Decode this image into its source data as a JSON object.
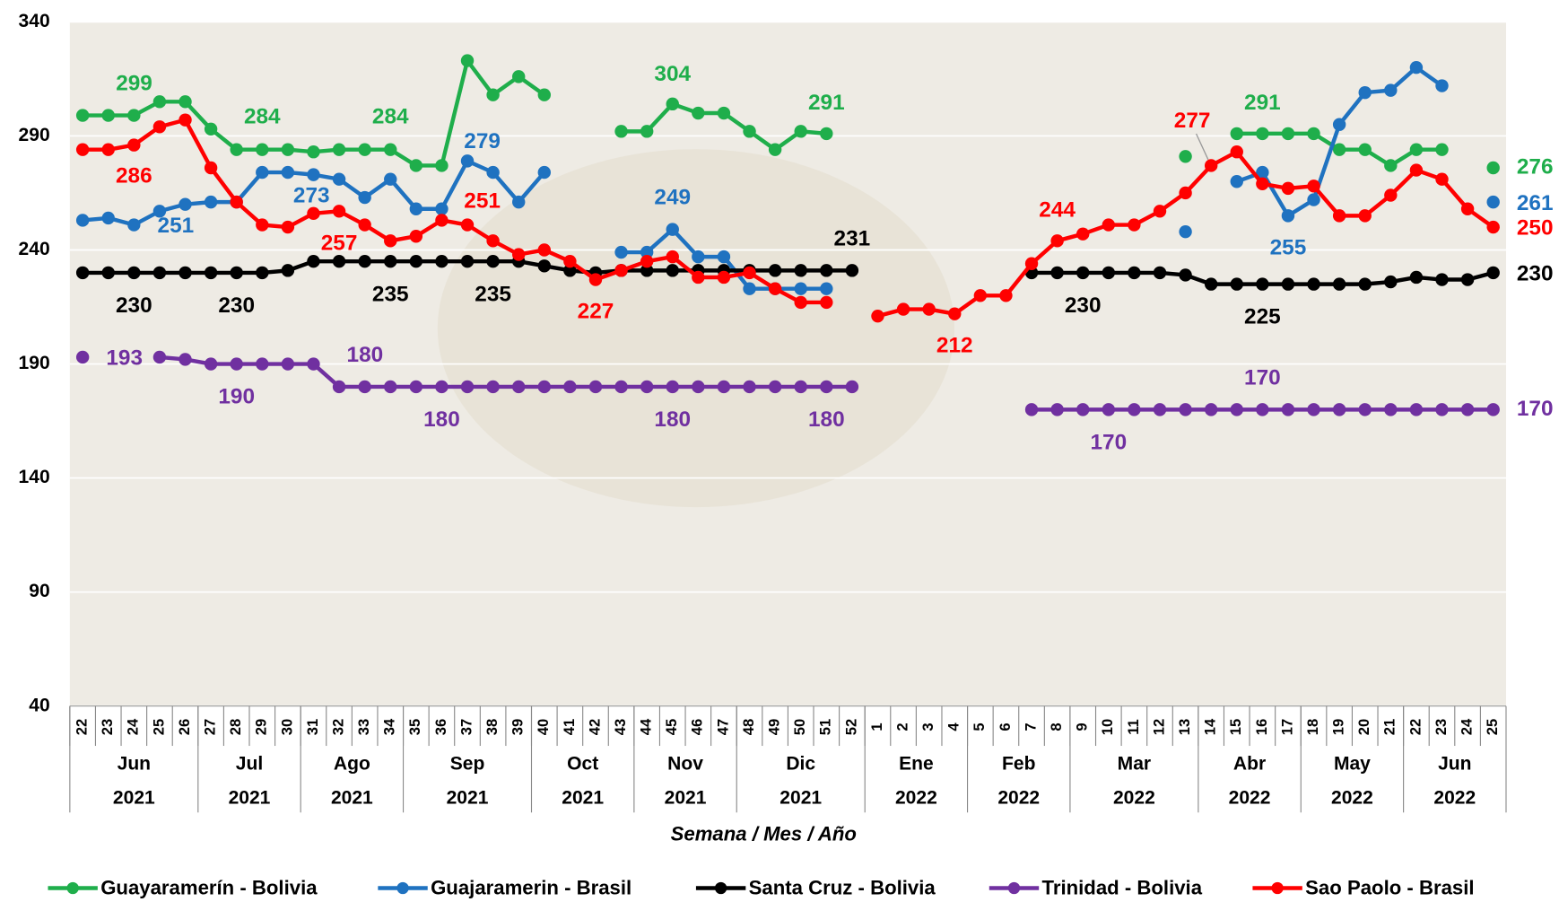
{
  "chart_data": {
    "type": "line",
    "x_title": "Semana / Mes / Año",
    "categories": [
      "22",
      "23",
      "24",
      "25",
      "26",
      "27",
      "28",
      "29",
      "30",
      "31",
      "32",
      "33",
      "34",
      "35",
      "36",
      "37",
      "38",
      "39",
      "40",
      "41",
      "42",
      "43",
      "44",
      "45",
      "46",
      "47",
      "48",
      "49",
      "50",
      "51",
      "52",
      "1",
      "2",
      "3",
      "4",
      "5",
      "6",
      "7",
      "8",
      "9",
      "10",
      "11",
      "12",
      "13",
      "14",
      "15",
      "16",
      "17",
      "18",
      "19",
      "20",
      "21",
      "22",
      "23",
      "24",
      "25"
    ],
    "groups": [
      {
        "month": "Jun",
        "year": "2021",
        "weeks": 5
      },
      {
        "month": "Jul",
        "year": "2021",
        "weeks": 4
      },
      {
        "month": "Ago",
        "year": "2021",
        "weeks": 4
      },
      {
        "month": "Sep",
        "year": "2021",
        "weeks": 5
      },
      {
        "month": "Oct",
        "year": "2021",
        "weeks": 4
      },
      {
        "month": "Nov",
        "year": "2021",
        "weeks": 4
      },
      {
        "month": "Dic",
        "year": "2021",
        "weeks": 5
      },
      {
        "month": "Ene",
        "year": "2022",
        "weeks": 4
      },
      {
        "month": "Feb",
        "year": "2022",
        "weeks": 4
      },
      {
        "month": "Mar",
        "year": "2022",
        "weeks": 5
      },
      {
        "month": "Abr",
        "year": "2022",
        "weeks": 4
      },
      {
        "month": "May",
        "year": "2022",
        "weeks": 4
      },
      {
        "month": "Jun",
        "year": "2022",
        "weeks": 4
      }
    ],
    "ylim": [
      40,
      340
    ],
    "yticks": [
      40,
      90,
      140,
      190,
      240,
      290,
      340
    ],
    "grid": true,
    "series": [
      {
        "name": "Guayaramerín - Bolivia",
        "color": "#1fae4b",
        "values": [
          299,
          299,
          299,
          305,
          305,
          293,
          284,
          284,
          284,
          283,
          284,
          284,
          284,
          277,
          277,
          323,
          308,
          316,
          308,
          null,
          null,
          292,
          292,
          304,
          300,
          300,
          292,
          284,
          292,
          291,
          null,
          null,
          null,
          null,
          null,
          null,
          null,
          null,
          null,
          null,
          null,
          null,
          null,
          281,
          null,
          291,
          291,
          291,
          291,
          284,
          284,
          277,
          284,
          284,
          null,
          276
        ],
        "value_labels": [
          null,
          "299",
          null,
          null,
          null,
          null,
          null,
          "284",
          null,
          null,
          null,
          null,
          "284",
          null,
          null,
          null,
          null,
          null,
          null,
          null,
          null,
          null,
          null,
          "304",
          null,
          null,
          null,
          null,
          null,
          "291",
          null,
          null,
          null,
          null,
          null,
          null,
          null,
          null,
          null,
          null,
          null,
          null,
          null,
          null,
          null,
          null,
          "291",
          null,
          null,
          null,
          null,
          null,
          null,
          null,
          null,
          "276"
        ]
      },
      {
        "name": "Guajaramerin - Brasil",
        "color": "#1f72c0",
        "values": [
          253,
          254,
          251,
          257,
          260,
          261,
          261,
          274,
          274,
          273,
          271,
          263,
          271,
          258,
          258,
          279,
          274,
          261,
          274,
          null,
          null,
          239,
          239,
          249,
          237,
          237,
          223,
          223,
          223,
          223,
          null,
          null,
          null,
          null,
          null,
          null,
          null,
          null,
          null,
          null,
          null,
          null,
          null,
          248,
          null,
          270,
          274,
          255,
          262,
          295,
          309,
          310,
          320,
          312,
          null,
          261
        ],
        "value_labels": [
          null,
          null,
          "251",
          null,
          null,
          null,
          null,
          null,
          null,
          "273",
          null,
          null,
          null,
          null,
          null,
          "279",
          null,
          null,
          null,
          null,
          null,
          null,
          null,
          "249",
          null,
          null,
          null,
          null,
          null,
          null,
          null,
          null,
          null,
          null,
          null,
          null,
          null,
          null,
          null,
          null,
          null,
          null,
          null,
          null,
          null,
          null,
          null,
          "255",
          null,
          null,
          null,
          null,
          null,
          null,
          null,
          "261"
        ]
      },
      {
        "name": "Santa Cruz - Bolivia",
        "color": "#000000",
        "values": [
          230,
          230,
          230,
          230,
          230,
          230,
          230,
          230,
          231,
          235,
          235,
          235,
          235,
          235,
          235,
          235,
          235,
          235,
          233,
          231,
          230,
          231,
          231,
          231,
          231,
          231,
          231,
          231,
          231,
          231,
          231,
          null,
          null,
          null,
          null,
          null,
          null,
          230,
          230,
          230,
          230,
          230,
          230,
          229,
          225,
          225,
          225,
          225,
          225,
          225,
          225,
          226,
          228,
          227,
          227,
          230
        ],
        "value_labels": [
          null,
          null,
          "230",
          null,
          null,
          null,
          "230",
          null,
          null,
          null,
          null,
          null,
          "235",
          null,
          null,
          null,
          "235",
          null,
          null,
          null,
          null,
          null,
          null,
          null,
          null,
          null,
          null,
          null,
          null,
          null,
          "231",
          null,
          null,
          null,
          null,
          null,
          null,
          null,
          null,
          "230",
          null,
          null,
          null,
          null,
          null,
          null,
          "225",
          null,
          null,
          null,
          null,
          null,
          null,
          null,
          null,
          "230"
        ]
      },
      {
        "name": "Trinidad - Bolivia",
        "color": "#7030a0",
        "values": [
          193,
          null,
          null,
          193,
          192,
          190,
          190,
          190,
          190,
          190,
          180,
          180,
          180,
          180,
          180,
          180,
          180,
          180,
          180,
          180,
          180,
          180,
          180,
          180,
          180,
          180,
          180,
          180,
          180,
          180,
          180,
          null,
          null,
          null,
          null,
          null,
          null,
          170,
          170,
          170,
          170,
          170,
          170,
          170,
          170,
          170,
          170,
          170,
          170,
          170,
          170,
          170,
          170,
          170,
          170,
          170
        ],
        "value_labels": [
          "193",
          null,
          null,
          null,
          null,
          null,
          "190",
          null,
          null,
          null,
          "180",
          null,
          null,
          null,
          "180",
          null,
          null,
          null,
          null,
          null,
          null,
          null,
          null,
          "180",
          null,
          null,
          null,
          null,
          null,
          "180",
          null,
          null,
          null,
          null,
          null,
          null,
          null,
          null,
          null,
          null,
          "170",
          null,
          null,
          null,
          null,
          null,
          "170",
          null,
          null,
          null,
          null,
          null,
          null,
          null,
          null,
          "170"
        ]
      },
      {
        "name": "Sao Paolo - Brasil",
        "color": "#ff0000",
        "values": [
          284,
          284,
          286,
          294,
          297,
          276,
          261,
          251,
          250,
          256,
          257,
          251,
          244,
          246,
          253,
          251,
          244,
          238,
          240,
          235,
          227,
          231,
          235,
          237,
          228,
          228,
          230,
          223,
          217,
          217,
          null,
          211,
          214,
          214,
          212,
          220,
          220,
          234,
          244,
          247,
          251,
          251,
          257,
          265,
          277,
          283,
          269,
          267,
          268,
          255,
          255,
          264,
          275,
          271,
          258,
          250
        ],
        "value_labels": [
          null,
          null,
          "286",
          null,
          null,
          null,
          null,
          null,
          null,
          null,
          "257",
          null,
          null,
          null,
          null,
          "251",
          null,
          null,
          null,
          null,
          "227",
          null,
          null,
          null,
          null,
          null,
          null,
          null,
          null,
          null,
          null,
          null,
          null,
          null,
          "212",
          null,
          null,
          null,
          "244",
          null,
          null,
          null,
          null,
          null,
          "277",
          null,
          null,
          null,
          null,
          null,
          null,
          null,
          null,
          null,
          null,
          "250"
        ]
      }
    ]
  }
}
